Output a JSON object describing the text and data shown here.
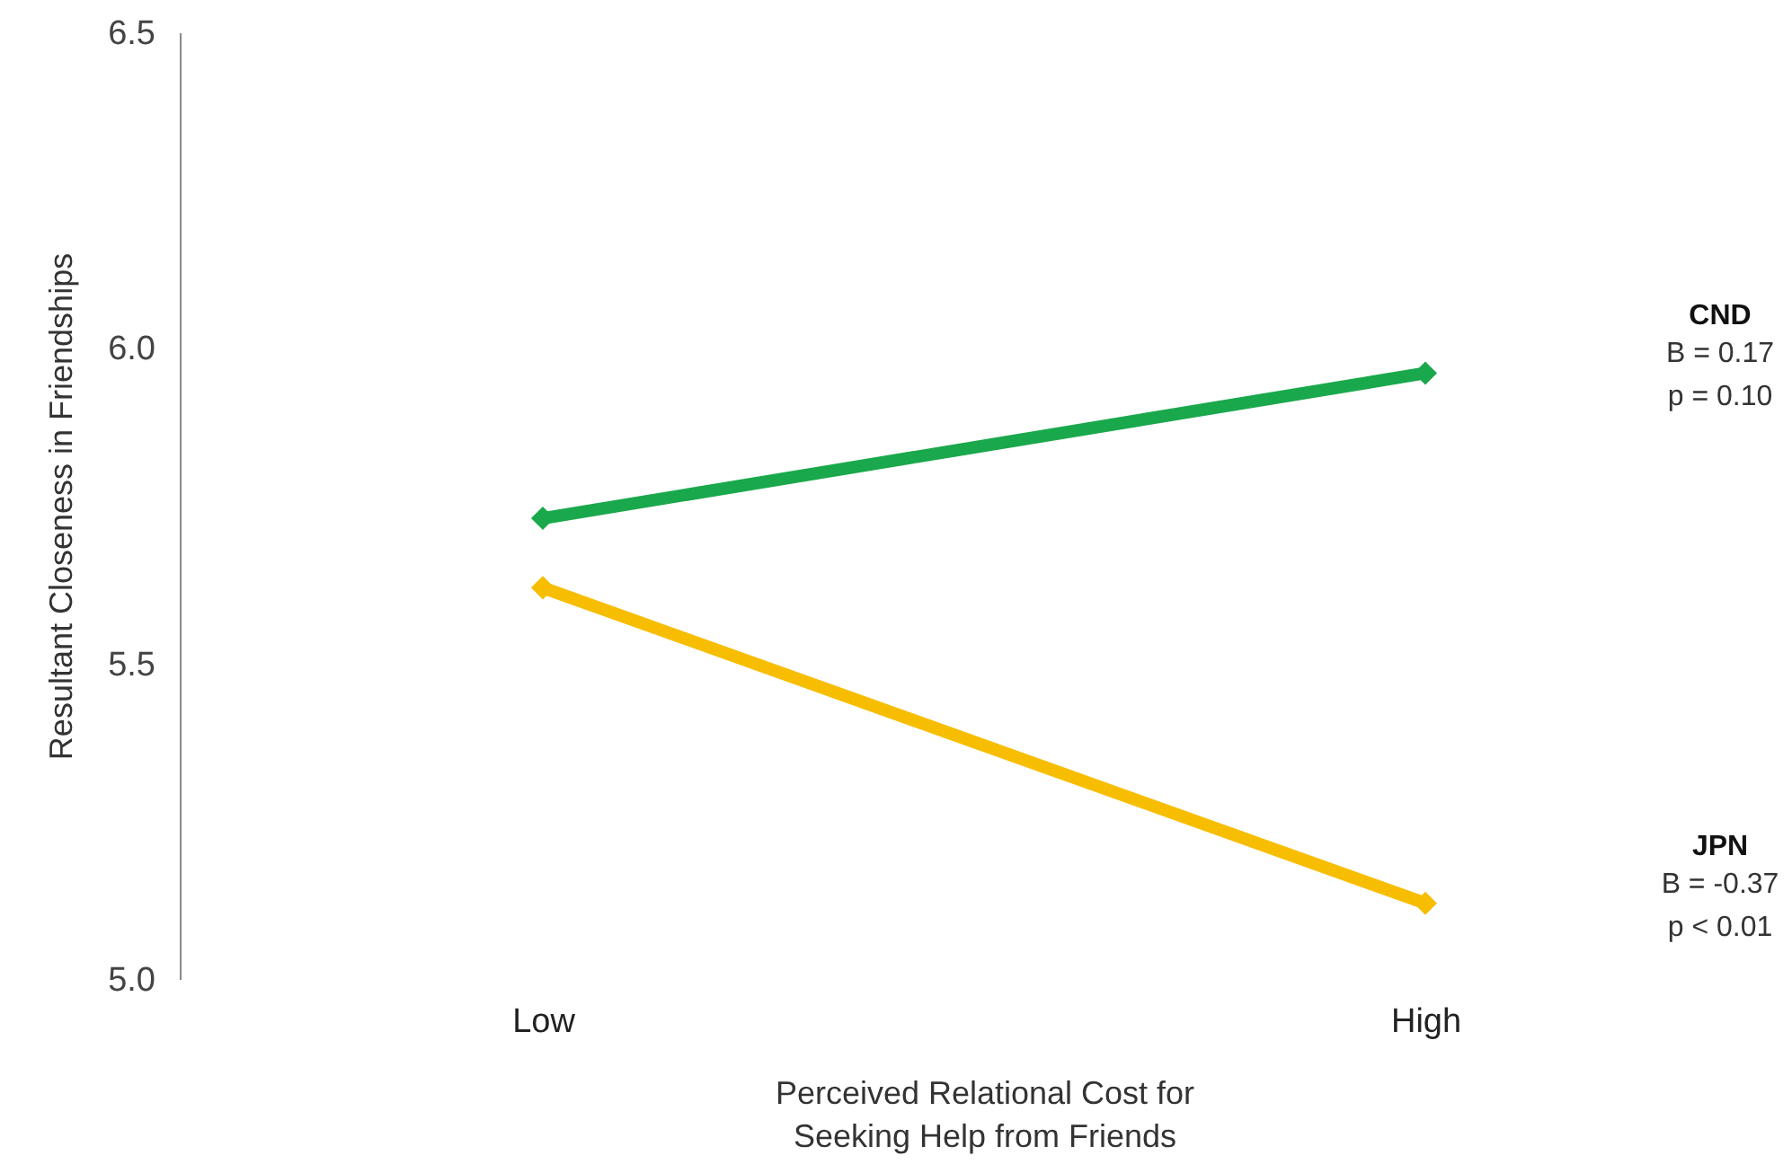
{
  "chart_data": {
    "type": "line",
    "xlabel": "Perceived Relational Cost for\nSeeking Help from Friends",
    "ylabel": "Resultant Closeness in Friendships",
    "categories": [
      "Low",
      "High"
    ],
    "series": [
      {
        "name": "CND",
        "color": "#1aa84c",
        "values": [
          5.73,
          5.96
        ]
      },
      {
        "name": "JPN",
        "color": "#f7bd00",
        "values": [
          5.62,
          5.12
        ]
      }
    ],
    "annotations": [
      "B = 0.17",
      "p = 0.10",
      "B = -0.37",
      "p < 0.01"
    ],
    "ylim": [
      5.0,
      6.5
    ],
    "yticks": [
      {
        "value": 5.0,
        "label": "5.0"
      },
      {
        "value": 5.5,
        "label": "5.5"
      },
      {
        "value": 6.0,
        "label": "6.0"
      },
      {
        "value": 6.5,
        "label": "6.5"
      }
    ],
    "marker": "diamond",
    "grid": false,
    "line_style": "solid"
  }
}
